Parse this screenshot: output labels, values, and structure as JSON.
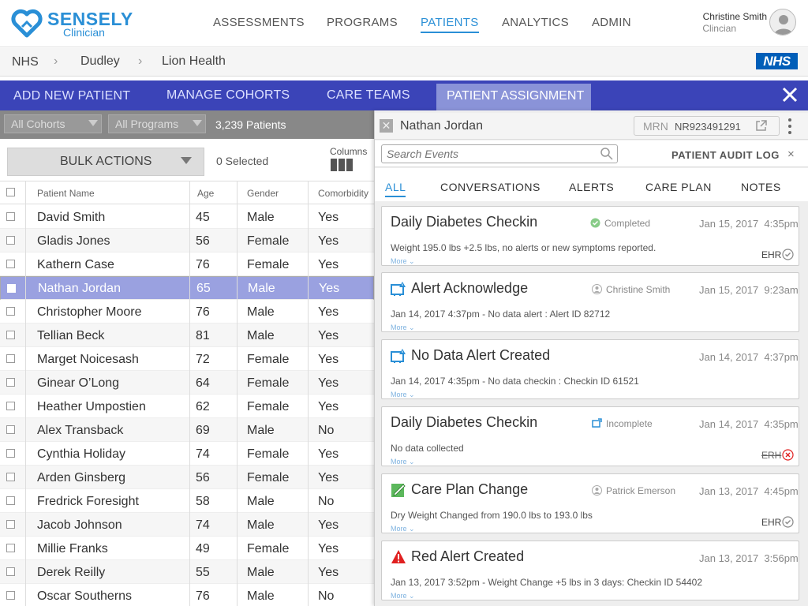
{
  "brand": {
    "name": "SENSELY",
    "sub": "Clinician",
    "color": "#2a8fd6"
  },
  "nav": {
    "items": [
      "ASSESSMENTS",
      "PROGRAMS",
      "PATIENTS",
      "ANALYTICS",
      "ADMIN"
    ],
    "active": "PATIENTS"
  },
  "user": {
    "name": "Christine Smith",
    "role": "Clincian"
  },
  "breadcrumb": [
    "NHS",
    "Dudley",
    "Lion Health"
  ],
  "nhs_logo": "NHS",
  "tabs": {
    "add": "ADD NEW PATIENT",
    "cohorts": "MANAGE COHORTS",
    "teams": "CARE TEAMS",
    "assign": "PATIENT ASSIGNMENT"
  },
  "filters": {
    "cohorts": "All Cohorts",
    "programs": "All Programs",
    "count": "3,239 Patients"
  },
  "bulk": {
    "label": "BULK ACTIONS",
    "selected": "0 Selected",
    "columns": "Columns"
  },
  "table": {
    "headers": [
      "Patient Name",
      "Age",
      "Gender",
      "Comorbidity"
    ],
    "rows": [
      [
        "David Smith",
        "45",
        "Male",
        "Yes"
      ],
      [
        "Gladis Jones",
        "56",
        "Female",
        "Yes"
      ],
      [
        "Kathern Case",
        "76",
        "Female",
        "Yes"
      ],
      [
        "Nathan Jordan",
        "65",
        "Male",
        "Yes"
      ],
      [
        "Christopher Moore",
        "76",
        "Male",
        "Yes"
      ],
      [
        "Tellian Beck",
        "81",
        "Male",
        "Yes"
      ],
      [
        "Marget Noicesash",
        "72",
        "Female",
        "Yes"
      ],
      [
        "Ginear O’Long",
        "64",
        "Female",
        "Yes"
      ],
      [
        "Heather Umpostien",
        "62",
        "Female",
        "Yes"
      ],
      [
        "Alex Transback",
        "69",
        "Male",
        "No"
      ],
      [
        "Cynthia Holiday",
        "74",
        "Female",
        "Yes"
      ],
      [
        "Arden Ginsberg",
        "56",
        "Female",
        "Yes"
      ],
      [
        "Fredrick Foresight",
        "58",
        "Male",
        "No"
      ],
      [
        "Jacob Johnson",
        "74",
        "Male",
        "Yes"
      ],
      [
        "Millie Franks",
        "49",
        "Female",
        "Yes"
      ],
      [
        "Derek Reilly",
        "55",
        "Male",
        "Yes"
      ],
      [
        "Oscar Southerns",
        "76",
        "Male",
        "No"
      ]
    ],
    "selected_index": 3
  },
  "panel": {
    "patient": "Nathan Jordan",
    "mrn_label": "MRN",
    "mrn": "NR923491291",
    "search_placeholder": "Search Events",
    "audit_label": "PATIENT AUDIT LOG",
    "audit_close": "×",
    "filter_tabs": [
      "ALL",
      "CONVERSATIONS",
      "ALERTS",
      "CARE PLAN",
      "NOTES"
    ],
    "active_filter": "ALL"
  },
  "events": [
    {
      "title": "Daily Diabetes Checkin",
      "icon": "",
      "status": "Completed",
      "status_icon": "check-circle-icon",
      "date": "Jan 15, 2017  4:35pm",
      "desc": "Weight  195.0 lbs +2.5 lbs, no alerts or new symptoms reported.",
      "more": "More",
      "ehr": "EHR",
      "ehr_state": "ok"
    },
    {
      "title": "Alert Acknowledge",
      "icon": "alert-screen-icon",
      "status": "Christine Smith",
      "status_icon": "person-icon",
      "date": "Jan 15, 2017  9:23am",
      "desc": "Jan 14, 2017 4:37pm - No data alert : Alert ID 82712",
      "more": "More",
      "ehr": "",
      "ehr_state": ""
    },
    {
      "title": "No Data Alert Created",
      "icon": "alert-screen-icon",
      "status": "",
      "status_icon": "",
      "date": "Jan 14, 2017  4:37pm",
      "desc": "Jan 14, 2017 4:35pm - No data checkin : Checkin ID 61521",
      "more": "More",
      "ehr": "",
      "ehr_state": ""
    },
    {
      "title": "Daily Diabetes Checkin",
      "icon": "",
      "status": "Incomplete",
      "status_icon": "incomplete-icon",
      "date": "Jan 14, 2017  4:35pm",
      "desc": "No data collected",
      "more": "More",
      "ehr": "ERH",
      "ehr_state": "error"
    },
    {
      "title": "Care Plan Change",
      "icon": "care-plan-icon",
      "status": "Patrick Emerson",
      "status_icon": "person-icon",
      "date": "Jan 13, 2017  4:45pm",
      "desc": "Dry Weight Changed from 190.0 lbs to 193.0 lbs",
      "more": "More",
      "ehr": "EHR",
      "ehr_state": "ok"
    },
    {
      "title": "Red Alert Created",
      "icon": "red-alert-icon",
      "status": "",
      "status_icon": "",
      "date": "Jan 13, 2017  3:56pm",
      "desc": "Jan 13, 2017 3:52pm - Weight Change +5 lbs in 3 days: Checkin ID 54402",
      "more": "More",
      "ehr": "",
      "ehr_state": ""
    }
  ],
  "colors": {
    "accent": "#2a8fd6",
    "tabbar": "#3b44b8",
    "selected_row": "#9aa1e0",
    "alert": "#e02020",
    "ok": "#4a4",
    "nhs": "#005eb8"
  }
}
